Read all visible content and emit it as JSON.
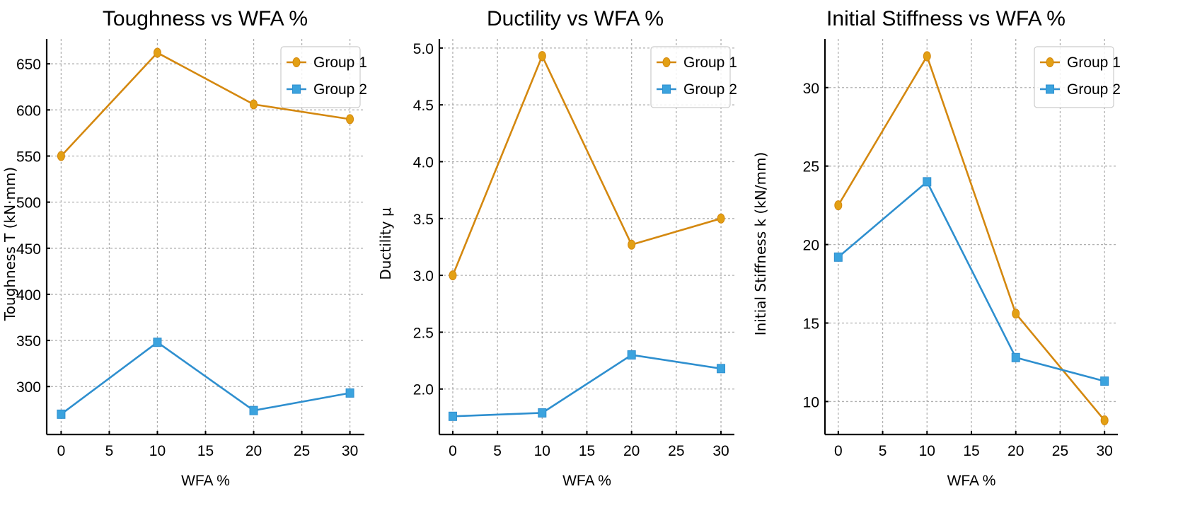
{
  "chart_data": [
    {
      "type": "line",
      "title": "Toughness vs WFA %",
      "xlabel": "WFA %",
      "ylabel": "Toughness T (kN·mm)",
      "x": [
        0,
        10,
        20,
        30
      ],
      "xticks": [
        0,
        5,
        10,
        15,
        20,
        25,
        30
      ],
      "xtick_labels": [
        "0",
        "5",
        "10",
        "15",
        "20",
        "25",
        "30"
      ],
      "yticks": [
        300,
        350,
        400,
        450,
        500,
        550,
        600,
        650
      ],
      "ytick_labels": [
        "300",
        "350",
        "400",
        "450",
        "500",
        "550",
        "600",
        "650"
      ],
      "xlim": [
        -1.5,
        31.5
      ],
      "ylim": [
        248,
        677
      ],
      "grid": true,
      "legend": "top-right",
      "series": [
        {
          "name": "Group 1",
          "values": [
            550,
            662,
            606,
            590
          ],
          "color": "#D4880F",
          "marker": "circle"
        },
        {
          "name": "Group 2",
          "values": [
            270,
            348,
            274,
            293
          ],
          "color": "#2E8FCF",
          "marker": "square"
        }
      ]
    },
    {
      "type": "line",
      "title": "Ductility vs WFA %",
      "xlabel": "WFA %",
      "ylabel": "Ductility μ",
      "x": [
        0,
        10,
        20,
        30
      ],
      "xticks": [
        0,
        5,
        10,
        15,
        20,
        25,
        30
      ],
      "xtick_labels": [
        "0",
        "5",
        "10",
        "15",
        "20",
        "25",
        "30"
      ],
      "yticks": [
        2.0,
        2.5,
        3.0,
        3.5,
        4.0,
        4.5,
        5.0
      ],
      "ytick_labels": [
        "2.0",
        "2.5",
        "3.0",
        "3.5",
        "4.0",
        "4.5",
        "5.0"
      ],
      "xlim": [
        -1.5,
        31.5
      ],
      "ylim": [
        1.6,
        5.08
      ],
      "grid": true,
      "legend": "top-right",
      "series": [
        {
          "name": "Group 1",
          "values": [
            3.0,
            4.93,
            3.27,
            3.5
          ],
          "color": "#D4880F",
          "marker": "circle"
        },
        {
          "name": "Group 2",
          "values": [
            1.76,
            1.79,
            2.3,
            2.18
          ],
          "color": "#2E8FCF",
          "marker": "square"
        }
      ]
    },
    {
      "type": "line",
      "title": "Initial Stiffness vs WFA %",
      "xlabel": "WFA %",
      "ylabel": "Initial Stiffness k (kN/mm)",
      "x": [
        0,
        10,
        20,
        30
      ],
      "xticks": [
        0,
        5,
        10,
        15,
        20,
        25,
        30
      ],
      "xtick_labels": [
        "0",
        "5",
        "10",
        "15",
        "20",
        "25",
        "30"
      ],
      "yticks": [
        10,
        15,
        20,
        25,
        30
      ],
      "ytick_labels": [
        "10",
        "15",
        "20",
        "25",
        "30"
      ],
      "xlim": [
        -1.5,
        31.5
      ],
      "ylim": [
        7.9,
        33.1
      ],
      "grid": true,
      "legend": "top-right",
      "series": [
        {
          "name": "Group 1",
          "values": [
            22.5,
            32.0,
            15.6,
            8.8
          ],
          "color": "#D4880F",
          "marker": "circle"
        },
        {
          "name": "Group 2",
          "values": [
            19.2,
            24.0,
            12.8,
            11.3
          ],
          "color": "#2E8FCF",
          "marker": "square"
        }
      ]
    }
  ]
}
